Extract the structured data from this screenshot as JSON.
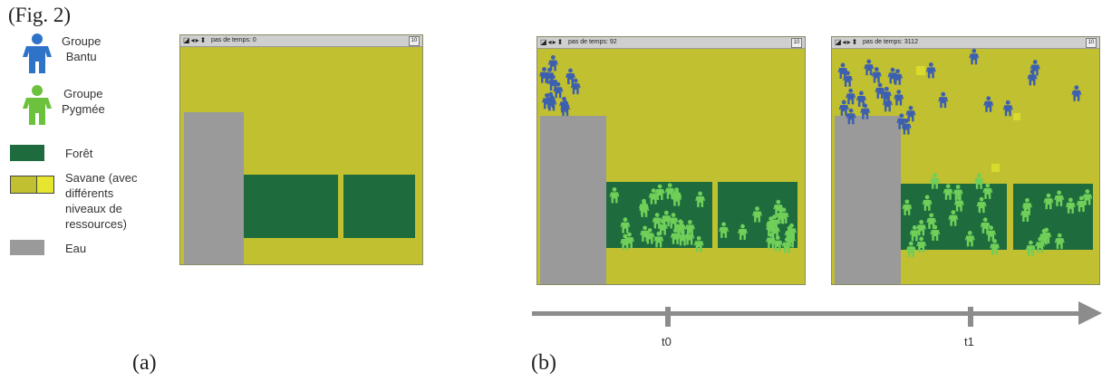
{
  "figure": {
    "title": "(Fig. 2)",
    "panel_a_label": "(a)",
    "panel_b_label": "(b)"
  },
  "legend": {
    "bantu": "Groupe\nBantu",
    "pygmy": "Groupe\nPygmée",
    "forest": "Forêt",
    "savanna": "Savane (avec\ndifférents\nniveaux de\nressources)",
    "water": "Eau"
  },
  "colors": {
    "bantu": "#2f73c8",
    "bantu_sim": "#3d5fb0",
    "pygmy": "#6cc23c",
    "pygmy_sim": "#6fcf59",
    "forest": "#1e6b3d",
    "savanna": "#c1c030",
    "savanna_rich": "#dada2c",
    "water": "#9a9a9a"
  },
  "windows": {
    "a": {
      "step": "pas de temps: 0",
      "button": "10"
    },
    "t0": {
      "step": "pas de temps: 92",
      "button": "10"
    },
    "t1": {
      "step": "pas de temps: 3112",
      "button": "10"
    }
  },
  "timeline": {
    "t0": "t0",
    "t1": "t1"
  }
}
